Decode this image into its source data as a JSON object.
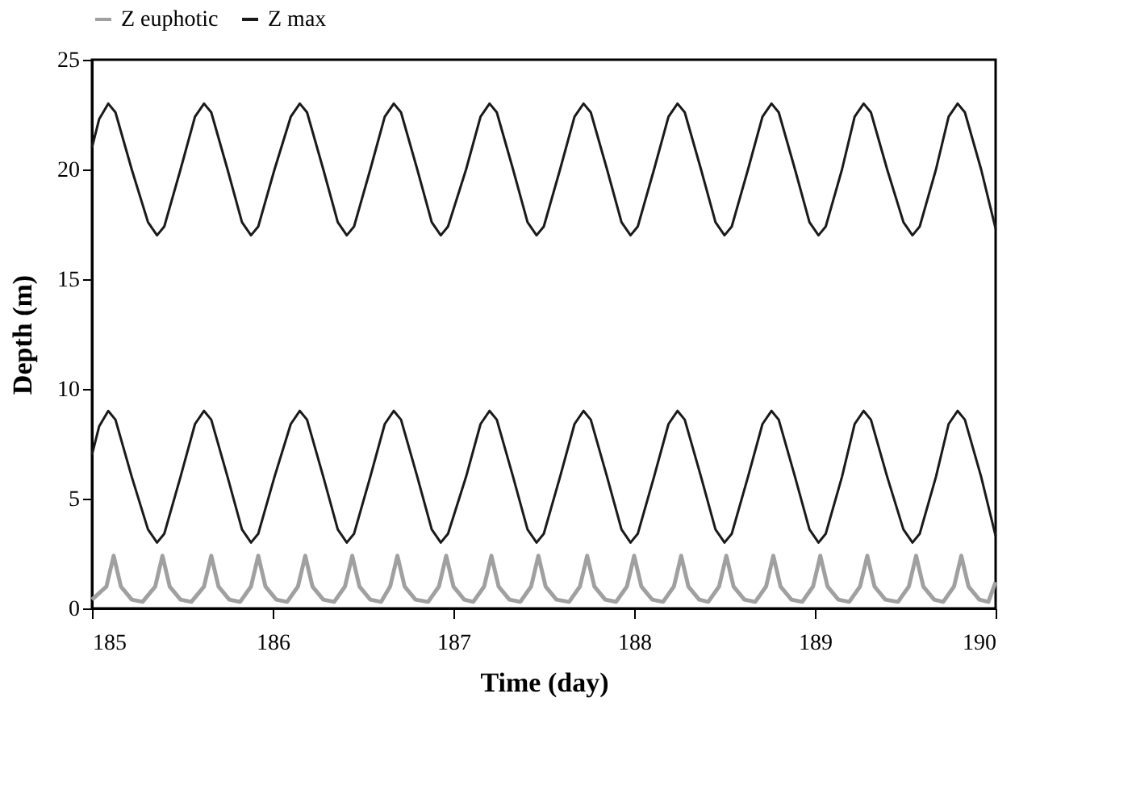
{
  "chart_data": {
    "type": "line",
    "xlabel": "Time (day)",
    "ylabel": "Depth (m)",
    "xlim": [
      185,
      190
    ],
    "xticks": [
      185,
      186,
      187,
      188,
      189,
      190
    ],
    "ylim": [
      0,
      25
    ],
    "yticks": [
      0,
      5,
      10,
      15,
      20,
      25
    ],
    "grid": false,
    "legend": "top",
    "series": [
      {
        "name": "Z euphotic",
        "color": "#a0a0a0",
        "x": [
          185.0,
          185.08,
          185.12,
          185.16,
          185.22,
          185.28,
          185.35,
          185.39,
          185.43,
          185.49,
          185.55,
          185.62,
          185.66,
          185.7,
          185.76,
          185.82,
          185.88,
          185.92,
          185.96,
          186.02,
          186.08,
          186.14,
          186.18,
          186.22,
          186.28,
          186.34,
          186.4,
          186.44,
          186.48,
          186.54,
          186.6,
          186.65,
          186.69,
          186.73,
          186.79,
          186.86,
          186.92,
          186.96,
          187.0,
          187.06,
          187.11,
          187.17,
          187.21,
          187.25,
          187.31,
          187.37,
          187.43,
          187.47,
          187.51,
          187.57,
          187.64,
          187.7,
          187.74,
          187.78,
          187.84,
          187.9,
          187.96,
          188.0,
          188.04,
          188.1,
          188.16,
          188.22,
          188.26,
          188.3,
          188.36,
          188.41,
          188.47,
          188.51,
          188.55,
          188.61,
          188.67,
          188.73,
          188.77,
          188.81,
          188.87,
          188.93,
          188.99,
          189.03,
          189.07,
          189.13,
          189.19,
          189.25,
          189.29,
          189.33,
          189.39,
          189.46,
          189.52,
          189.56,
          189.6,
          189.66,
          189.71,
          189.77,
          189.81,
          189.85,
          189.91,
          189.96,
          190.0
        ],
        "values": [
          0.4,
          1.0,
          2.4,
          1.0,
          0.4,
          0.3,
          1.0,
          2.4,
          1.0,
          0.4,
          0.3,
          1.0,
          2.4,
          1.0,
          0.4,
          0.3,
          1.0,
          2.4,
          1.0,
          0.4,
          0.3,
          1.0,
          2.4,
          1.0,
          0.4,
          0.3,
          1.0,
          2.4,
          1.0,
          0.4,
          0.3,
          1.0,
          2.4,
          1.0,
          0.4,
          0.3,
          1.0,
          2.4,
          1.0,
          0.4,
          0.3,
          1.0,
          2.4,
          1.0,
          0.4,
          0.3,
          1.0,
          2.4,
          1.0,
          0.4,
          0.3,
          1.0,
          2.4,
          1.0,
          0.4,
          0.3,
          1.0,
          2.4,
          1.0,
          0.4,
          0.3,
          1.0,
          2.4,
          1.0,
          0.4,
          0.3,
          1.0,
          2.4,
          1.0,
          0.4,
          0.3,
          1.0,
          2.4,
          1.0,
          0.4,
          0.3,
          1.0,
          2.4,
          1.0,
          0.4,
          0.3,
          1.0,
          2.4,
          1.0,
          0.4,
          0.3,
          1.0,
          2.4,
          1.0,
          0.4,
          0.3,
          1.0,
          2.4,
          1.0,
          0.4,
          0.3,
          1.2
        ]
      },
      {
        "name": "Z max",
        "color": "#1a1a1a",
        "x": [
          185.0,
          185.04,
          185.09,
          185.13,
          185.22,
          185.31,
          185.36,
          185.4,
          185.49,
          185.57,
          185.62,
          185.66,
          185.75,
          185.83,
          185.88,
          185.92,
          186.01,
          186.1,
          186.15,
          186.19,
          186.28,
          186.36,
          186.41,
          186.45,
          186.54,
          186.62,
          186.67,
          186.71,
          186.8,
          186.88,
          186.93,
          186.97,
          187.07,
          187.15,
          187.2,
          187.24,
          187.33,
          187.41,
          187.46,
          187.5,
          187.59,
          187.67,
          187.72,
          187.76,
          187.85,
          187.93,
          187.98,
          188.02,
          188.11,
          188.19,
          188.24,
          188.28,
          188.37,
          188.45,
          188.5,
          188.54,
          188.63,
          188.71,
          188.76,
          188.8,
          188.89,
          188.97,
          189.02,
          189.06,
          189.15,
          189.22,
          189.27,
          189.31,
          189.4,
          189.49,
          189.54,
          189.58,
          189.67,
          189.74,
          189.79,
          189.83,
          189.92,
          190.0
        ],
        "values": [
          21.0,
          22.3,
          23.0,
          22.6,
          20.0,
          17.6,
          17.0,
          17.4,
          20.0,
          22.4,
          23.0,
          22.6,
          20.0,
          17.6,
          17.0,
          17.4,
          20.0,
          22.4,
          23.0,
          22.6,
          20.0,
          17.6,
          17.0,
          17.4,
          20.0,
          22.4,
          23.0,
          22.6,
          20.0,
          17.6,
          17.0,
          17.4,
          20.0,
          22.4,
          23.0,
          22.6,
          20.0,
          17.6,
          17.0,
          17.4,
          20.0,
          22.4,
          23.0,
          22.6,
          20.0,
          17.6,
          17.0,
          17.4,
          20.0,
          22.4,
          23.0,
          22.6,
          20.0,
          17.6,
          17.0,
          17.4,
          20.0,
          22.4,
          23.0,
          22.6,
          20.0,
          17.6,
          17.0,
          17.4,
          20.0,
          22.4,
          23.0,
          22.6,
          20.0,
          17.6,
          17.0,
          17.4,
          20.0,
          22.4,
          23.0,
          22.6,
          20.0,
          17.3
        ]
      },
      {
        "color": "#1a1a1a",
        "x": [
          185.0,
          185.04,
          185.09,
          185.13,
          185.22,
          185.31,
          185.36,
          185.4,
          185.49,
          185.57,
          185.62,
          185.66,
          185.75,
          185.83,
          185.88,
          185.92,
          186.01,
          186.1,
          186.15,
          186.19,
          186.28,
          186.36,
          186.41,
          186.45,
          186.54,
          186.62,
          186.67,
          186.71,
          186.8,
          186.88,
          186.93,
          186.97,
          187.07,
          187.15,
          187.2,
          187.24,
          187.33,
          187.41,
          187.46,
          187.5,
          187.59,
          187.67,
          187.72,
          187.76,
          187.85,
          187.93,
          187.98,
          188.02,
          188.11,
          188.19,
          188.24,
          188.28,
          188.37,
          188.45,
          188.5,
          188.54,
          188.63,
          188.71,
          188.76,
          188.8,
          188.89,
          188.97,
          189.02,
          189.06,
          189.15,
          189.22,
          189.27,
          189.31,
          189.4,
          189.49,
          189.54,
          189.58,
          189.67,
          189.74,
          189.79,
          189.83,
          189.92,
          190.0
        ],
        "values": [
          7.0,
          8.3,
          9.0,
          8.6,
          6.0,
          3.6,
          3.0,
          3.4,
          6.0,
          8.4,
          9.0,
          8.6,
          6.0,
          3.6,
          3.0,
          3.4,
          6.0,
          8.4,
          9.0,
          8.6,
          6.0,
          3.6,
          3.0,
          3.4,
          6.0,
          8.4,
          9.0,
          8.6,
          6.0,
          3.6,
          3.0,
          3.4,
          6.0,
          8.4,
          9.0,
          8.6,
          6.0,
          3.6,
          3.0,
          3.4,
          6.0,
          8.4,
          9.0,
          8.6,
          6.0,
          3.6,
          3.0,
          3.4,
          6.0,
          8.4,
          9.0,
          8.6,
          6.0,
          3.6,
          3.0,
          3.4,
          6.0,
          8.4,
          9.0,
          8.6,
          6.0,
          3.6,
          3.0,
          3.4,
          6.0,
          8.4,
          9.0,
          8.6,
          6.0,
          3.6,
          3.0,
          3.4,
          6.0,
          8.4,
          9.0,
          8.6,
          6.0,
          3.3
        ]
      }
    ]
  }
}
